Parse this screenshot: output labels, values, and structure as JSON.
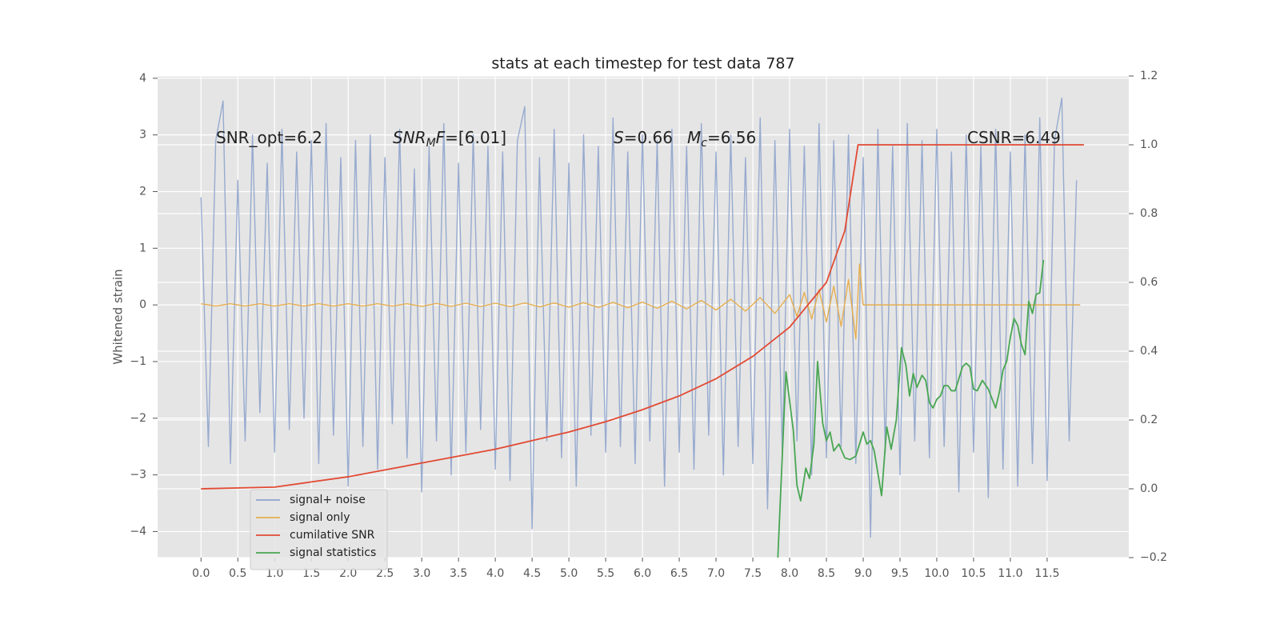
{
  "chart_data": {
    "type": "line",
    "title": "stats at each timestep for test data 787",
    "ylabel": "Whitened strain",
    "annotations": [
      [
        "SNR_opt=6.2"
      ],
      [
        "SNR",
        "M",
        "F",
        "=[6.01]"
      ],
      [
        "S",
        "=0.66"
      ],
      [
        "M",
        "c",
        "=6.56"
      ],
      [
        "CSNR=6.49"
      ]
    ],
    "xlim": [
      -0.59,
      12.61
    ],
    "ylim": [
      -4.46,
      4.04
    ],
    "y2lim": [
      -0.2,
      1.2
    ],
    "xticks": [
      {
        "value": 0,
        "label": "0.0"
      },
      0.5,
      {
        "value": 1,
        "label": "1.0"
      },
      1.5,
      {
        "value": 2,
        "label": "2.0"
      },
      2.5,
      {
        "value": 3,
        "label": "3.0"
      },
      3.5,
      {
        "value": 4,
        "label": "4.0"
      },
      4.5,
      {
        "value": 5,
        "label": "5.0"
      },
      5.5,
      {
        "value": 6,
        "label": "6.0"
      },
      6.5,
      {
        "value": 7,
        "label": "7.0"
      },
      7.5,
      {
        "value": 8,
        "label": "8.0"
      },
      8.5,
      {
        "value": 9,
        "label": "9.0"
      },
      9.5,
      {
        "value": 10,
        "label": "10.0"
      },
      10.5,
      {
        "value": 11,
        "label": "11.0"
      },
      11.5
    ],
    "yticks": [
      {
        "value": -4,
        "label": "−4"
      },
      {
        "value": -3,
        "label": "−3"
      },
      {
        "value": -2,
        "label": "−2"
      },
      {
        "value": -1,
        "label": "−1"
      },
      0,
      1,
      2,
      3,
      4
    ],
    "y2ticks": [
      {
        "value": -0.2,
        "label": "−0.2"
      },
      {
        "value": 0,
        "label": "0.0"
      },
      0.2,
      0.4,
      0.6,
      0.8,
      {
        "value": 1,
        "label": "1.0"
      },
      1.2
    ],
    "grid": true,
    "legend": "lower left",
    "series": [
      {
        "name": "signal+ noise",
        "color": "#8ea3cc",
        "x": [
          0,
          0.1,
          0.2,
          0.3,
          0.4,
          0.5,
          0.6,
          0.7,
          0.8,
          0.9,
          1,
          1.1,
          1.2,
          1.3,
          1.4,
          1.5,
          1.6,
          1.7,
          1.8,
          1.9,
          2,
          2.1,
          2.2,
          2.3,
          2.4,
          2.5,
          2.6,
          2.7,
          2.8,
          2.9,
          3,
          3.1,
          3.2,
          3.3,
          3.4,
          3.5,
          3.6,
          3.7,
          3.8,
          3.9,
          4,
          4.1,
          4.2,
          4.3,
          4.4,
          4.5,
          4.6,
          4.7,
          4.8,
          4.9,
          5,
          5.1,
          5.2,
          5.3,
          5.4,
          5.5,
          5.6,
          5.7,
          5.8,
          5.9,
          6,
          6.1,
          6.2,
          6.3,
          6.4,
          6.5,
          6.6,
          6.7,
          6.8,
          6.9,
          7,
          7.1,
          7.2,
          7.3,
          7.4,
          7.5,
          7.6,
          7.7,
          7.8,
          7.9,
          8,
          8.1,
          8.2,
          8.3,
          8.4,
          8.5,
          8.6,
          8.7,
          8.8,
          8.9,
          9,
          9.1,
          9.2,
          9.3,
          9.4,
          9.5,
          9.6,
          9.7,
          9.8,
          9.9,
          10,
          10.1,
          10.2,
          10.3,
          10.4,
          10.5,
          10.6,
          10.7,
          10.8,
          10.9,
          11,
          11.1,
          11.2,
          11.3,
          11.4,
          11.5,
          11.6,
          11.7,
          11.8,
          11.9
        ],
        "values": [
          1.9,
          -2.5,
          2.9,
          3.6,
          -2.8,
          2.2,
          -2.4,
          3.0,
          -1.9,
          2.5,
          -2.6,
          3.1,
          -2.2,
          2.7,
          -2.0,
          2.9,
          -2.8,
          3.2,
          -2.3,
          2.6,
          -3.2,
          2.9,
          -2.5,
          3.0,
          -2.9,
          2.6,
          -2.1,
          3.1,
          -2.7,
          2.4,
          -3.3,
          2.8,
          -2.4,
          3.2,
          -3.0,
          2.5,
          -2.6,
          3.0,
          -2.2,
          2.8,
          -2.9,
          2.7,
          -3.1,
          2.9,
          3.5,
          -3.95,
          2.6,
          -2.4,
          3.1,
          -2.7,
          2.5,
          -3.2,
          3.0,
          -2.3,
          2.8,
          -2.6,
          3.3,
          -2.5,
          2.7,
          -2.8,
          3.0,
          -2.4,
          2.9,
          -3.2,
          3.1,
          -2.6,
          2.8,
          -2.9,
          3.2,
          -2.3,
          2.7,
          -3.0,
          3.0,
          -2.5,
          2.6,
          -2.8,
          3.3,
          -3.6,
          2.9,
          -2.6,
          3.1,
          -2.4,
          2.8,
          -3.0,
          3.2,
          -2.7,
          2.9,
          -2.5,
          3.0,
          -2.8,
          2.6,
          -4.1,
          3.1,
          -2.6,
          2.8,
          -3.0,
          3.2,
          -2.4,
          2.9,
          -2.7,
          3.1,
          -2.5,
          2.7,
          -3.3,
          3.0,
          -2.6,
          2.8,
          -3.4,
          3.1,
          -2.9,
          2.7,
          -3.2,
          3.0,
          -2.8,
          3.3,
          -3.1,
          2.9,
          3.65,
          -2.4,
          2.2
        ]
      },
      {
        "name": "signal only",
        "color": "#e5ae4f",
        "x": [
          0,
          0.2,
          0.4,
          0.6,
          0.8,
          1,
          1.2,
          1.4,
          1.6,
          1.8,
          2,
          2.2,
          2.4,
          2.6,
          2.8,
          3,
          3.2,
          3.4,
          3.6,
          3.8,
          4,
          4.2,
          4.4,
          4.6,
          4.8,
          5,
          5.2,
          5.4,
          5.6,
          5.8,
          6,
          6.2,
          6.4,
          6.6,
          6.8,
          7,
          7.2,
          7.4,
          7.6,
          7.8,
          8,
          8.1,
          8.2,
          8.3,
          8.4,
          8.5,
          8.6,
          8.7,
          8.8,
          8.9,
          8.95,
          9,
          11.95
        ],
        "values": [
          0.02,
          -0.02,
          0.02,
          -0.02,
          0.02,
          -0.02,
          0.02,
          -0.02,
          0.02,
          -0.02,
          0.02,
          -0.02,
          0.02,
          -0.02,
          0.02,
          -0.025,
          0.025,
          -0.025,
          0.03,
          -0.03,
          0.03,
          -0.03,
          0.035,
          -0.035,
          0.035,
          -0.04,
          0.04,
          -0.045,
          0.045,
          -0.05,
          0.05,
          -0.06,
          0.065,
          -0.07,
          0.08,
          -0.09,
          0.1,
          -0.11,
          0.13,
          -0.15,
          0.18,
          -0.2,
          0.22,
          -0.25,
          0.27,
          -0.3,
          0.33,
          -0.38,
          0.45,
          -0.6,
          0.72,
          0,
          0
        ]
      },
      {
        "name": "cumilative SNR",
        "color": "#e24a33",
        "axis": "y2",
        "x": [
          0,
          1,
          1.5,
          2,
          2.5,
          3,
          3.5,
          4,
          4.5,
          5,
          5.5,
          6,
          6.5,
          7,
          7.5,
          8,
          8.5,
          8.75,
          8.93,
          12
        ],
        "values": [
          0,
          0.005,
          0.02,
          0.035,
          0.055,
          0.075,
          0.095,
          0.115,
          0.14,
          0.165,
          0.195,
          0.23,
          0.27,
          0.32,
          0.385,
          0.47,
          0.6,
          0.75,
          1.0,
          1.0
        ]
      },
      {
        "name": "signal statistics",
        "color": "#48a652",
        "axis": "y2",
        "x": [
          7.84,
          7.95,
          8.05,
          8.1,
          8.15,
          8.22,
          8.27,
          8.33,
          8.38,
          8.45,
          8.5,
          8.55,
          8.6,
          8.67,
          8.75,
          8.82,
          8.9,
          9.0,
          9.05,
          9.1,
          9.15,
          9.25,
          9.32,
          9.38,
          9.45,
          9.52,
          9.58,
          9.63,
          9.68,
          9.73,
          9.8,
          9.85,
          9.9,
          9.95,
          10.0,
          10.05,
          10.1,
          10.15,
          10.2,
          10.25,
          10.35,
          10.4,
          10.45,
          10.5,
          10.55,
          10.62,
          10.7,
          10.8,
          10.85,
          10.9,
          10.95,
          11.0,
          11.05,
          11.1,
          11.15,
          11.2,
          11.25,
          11.3,
          11.35,
          11.4,
          11.45
        ],
        "values": [
          -0.2,
          0.34,
          0.17,
          0.01,
          -0.035,
          0.06,
          0.03,
          0.13,
          0.37,
          0.19,
          0.14,
          0.165,
          0.11,
          0.13,
          0.09,
          0.085,
          0.095,
          0.165,
          0.13,
          0.14,
          0.11,
          -0.02,
          0.18,
          0.115,
          0.2,
          0.41,
          0.36,
          0.27,
          0.335,
          0.295,
          0.33,
          0.315,
          0.25,
          0.235,
          0.26,
          0.27,
          0.3,
          0.3,
          0.285,
          0.285,
          0.355,
          0.365,
          0.355,
          0.29,
          0.285,
          0.315,
          0.29,
          0.235,
          0.28,
          0.345,
          0.37,
          0.44,
          0.495,
          0.475,
          0.42,
          0.39,
          0.545,
          0.51,
          0.565,
          0.57,
          0.665
        ]
      }
    ]
  }
}
